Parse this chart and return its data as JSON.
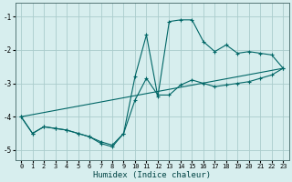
{
  "xlabel": "Humidex (Indice chaleur)",
  "bg_color": "#d7eeee",
  "grid_color": "#aacccc",
  "line_color": "#006666",
  "xlim": [
    -0.5,
    23.5
  ],
  "ylim": [
    -5.3,
    -0.6
  ],
  "yticks": [
    -5,
    -4,
    -3,
    -2,
    -1
  ],
  "xticks": [
    0,
    1,
    2,
    3,
    4,
    5,
    6,
    7,
    8,
    9,
    10,
    11,
    12,
    13,
    14,
    15,
    16,
    17,
    18,
    19,
    20,
    21,
    22,
    23
  ],
  "series": [
    {
      "x": [
        0,
        1,
        2,
        3,
        4,
        5,
        6,
        7,
        8,
        9,
        10,
        11,
        12,
        13,
        14,
        15,
        16,
        17,
        18,
        19,
        20,
        21,
        22,
        23
      ],
      "y": [
        -4.0,
        -4.5,
        -4.3,
        -4.35,
        -4.4,
        -4.5,
        -4.6,
        -4.8,
        -4.9,
        -4.5,
        -2.8,
        -1.55,
        -3.4,
        -1.15,
        -1.1,
        -1.1,
        -1.75,
        -2.05,
        -1.85,
        -2.1,
        -2.05,
        -2.1,
        -2.15,
        -2.55
      ],
      "marker": true
    },
    {
      "x": [
        0,
        1,
        2,
        3,
        4,
        5,
        6,
        7,
        8,
        9,
        10,
        11,
        12,
        13,
        14,
        15,
        16,
        17,
        18,
        19,
        20,
        21,
        22,
        23
      ],
      "y": [
        -4.0,
        -4.5,
        -4.3,
        -4.35,
        -4.4,
        -4.5,
        -4.6,
        -4.75,
        -4.85,
        -4.5,
        -3.5,
        -2.85,
        -3.35,
        -3.35,
        -3.05,
        -2.9,
        -3.0,
        -3.1,
        -3.05,
        -3.0,
        -2.95,
        -2.85,
        -2.75,
        -2.55
      ],
      "marker": true
    },
    {
      "x": [
        0,
        23
      ],
      "y": [
        -4.0,
        -2.55
      ],
      "marker": false
    }
  ]
}
